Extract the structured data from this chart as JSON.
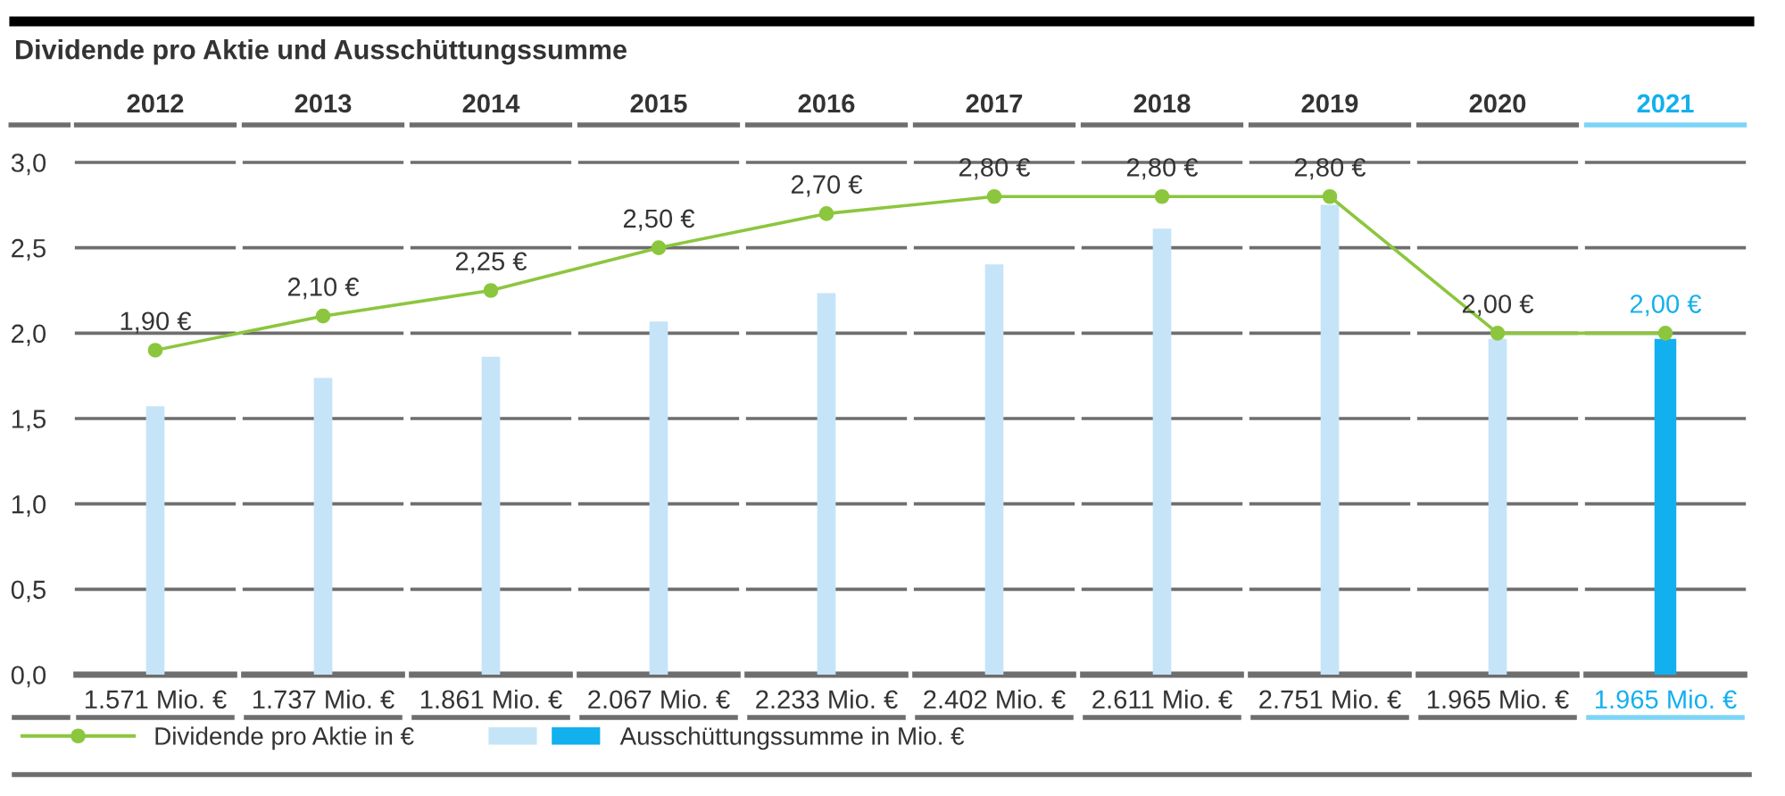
{
  "chart_data": {
    "type": "bar",
    "title": "Dividende pro Aktie und Ausschüttungssumme",
    "categories": [
      "2012",
      "2013",
      "2014",
      "2015",
      "2016",
      "2017",
      "2018",
      "2019",
      "2020",
      "2021"
    ],
    "series": [
      {
        "name": "Ausschüttungssumme in Mio. €",
        "axis": "y2",
        "color": "#c6e4f8",
        "colors": [
          "#c6e4f8",
          "#c6e4f8",
          "#c6e4f8",
          "#c6e4f8",
          "#c6e4f8",
          "#c6e4f8",
          "#c6e4f8",
          "#c6e4f8",
          "#c6e4f8",
          "#12b0ee"
        ],
        "values": [
          1571,
          1737,
          1861,
          2067,
          2233,
          2402,
          2611,
          2751,
          1965,
          1965
        ],
        "value_labels": [
          "1.571 Mio. €",
          "1.737 Mio. €",
          "1.861 Mio. €",
          "2.067 Mio. €",
          "2.233 Mio. €",
          "2.402 Mio. €",
          "2.611 Mio. €",
          "2.751 Mio. €",
          "1.965 Mio. €",
          "1.965 Mio. €"
        ]
      },
      {
        "name": "Dividende pro Aktie in €",
        "type": "line",
        "color": "#8cc63e",
        "marker": "circle",
        "line_style": "solid",
        "values": [
          1.9,
          2.1,
          2.25,
          2.5,
          2.7,
          2.8,
          2.8,
          2.8,
          2.0,
          2.0
        ],
        "value_labels": [
          "1,90 €",
          "2,10 €",
          "2,25 €",
          "2,50 €",
          "2,70 €",
          "2,80 €",
          "2,80 €",
          "2,80 €",
          "2,00 €",
          "2,00 €"
        ]
      }
    ],
    "ylim": [
      0,
      3.0
    ],
    "yticks": [
      {
        "value": 0,
        "label": "0,0"
      },
      {
        "value": 0.5,
        "label": "0,5"
      },
      {
        "value": 1.0,
        "label": "1,0"
      },
      {
        "value": 1.5,
        "label": "1,5"
      },
      {
        "value": 2.0,
        "label": "2,0"
      },
      {
        "value": 2.5,
        "label": "2,5"
      },
      {
        "value": 3.0,
        "label": "3,0"
      }
    ],
    "grid": "y",
    "legend": "bottom left"
  }
}
